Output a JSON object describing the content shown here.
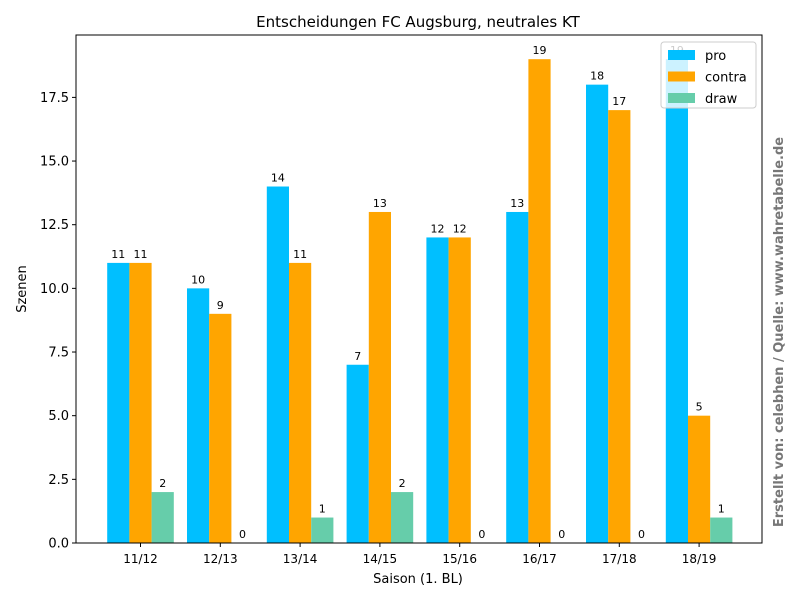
{
  "chart_data": {
    "type": "bar",
    "title": "Entscheidungen FC Augsburg, neutrales KT",
    "xlabel": "Saison (1. BL)",
    "ylabel": "Szenen",
    "ylim": [
      0,
      20
    ],
    "yticks": [
      0.0,
      2.5,
      5.0,
      7.5,
      10.0,
      12.5,
      15.0,
      17.5
    ],
    "ytick_labels": [
      "0.0",
      "2.5",
      "5.0",
      "7.5",
      "10.0",
      "12.5",
      "15.0",
      "17.5"
    ],
    "categories": [
      "11/12",
      "12/13",
      "13/14",
      "14/15",
      "15/16",
      "16/17",
      "17/18",
      "18/19"
    ],
    "series": [
      {
        "name": "pro",
        "color": "#00bfff",
        "values": [
          11,
          10,
          14,
          7,
          12,
          13,
          18,
          19
        ]
      },
      {
        "name": "contra",
        "color": "#ffa500",
        "values": [
          11,
          9,
          11,
          13,
          12,
          19,
          17,
          5
        ]
      },
      {
        "name": "draw",
        "color": "#66cdaa",
        "values": [
          2,
          0,
          1,
          2,
          0,
          0,
          0,
          1
        ]
      }
    ],
    "legend_position": "top-right",
    "grid": false,
    "side_note": "Erstellt von: celebhen / Quelle: www.wahretabelle.de"
  }
}
